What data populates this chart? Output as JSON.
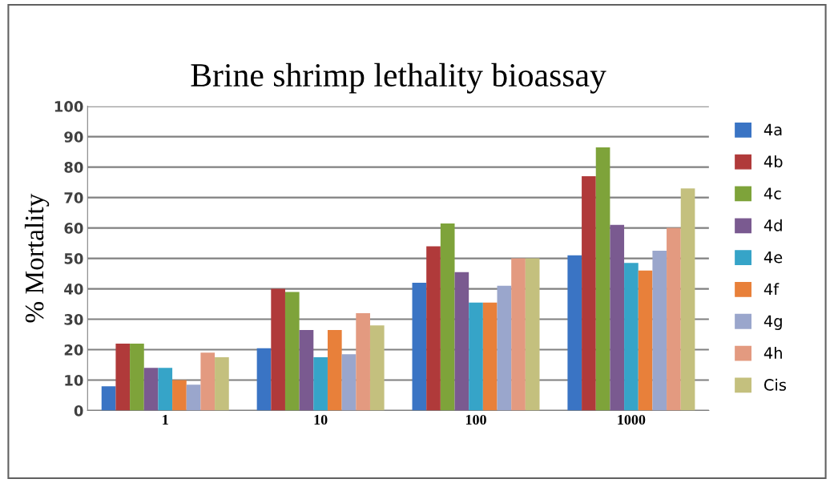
{
  "chart_data": {
    "type": "bar",
    "title": "Brine shrimp lethality bioassay",
    "ylabel": "% Mortality",
    "categories": [
      "1",
      "10",
      "100",
      "1000"
    ],
    "series": [
      {
        "name": "4a",
        "color": "#3a74c4",
        "values": [
          8,
          20.5,
          42,
          51
        ]
      },
      {
        "name": "4b",
        "color": "#b03a3a",
        "values": [
          22,
          40,
          54,
          77
        ]
      },
      {
        "name": "4c",
        "color": "#7ea33a",
        "values": [
          22,
          39,
          61.5,
          86.5
        ]
      },
      {
        "name": "4d",
        "color": "#7a5a90",
        "values": [
          14,
          26.5,
          45.5,
          61
        ]
      },
      {
        "name": "4e",
        "color": "#36a4c8",
        "values": [
          14,
          17.5,
          35.5,
          48.5
        ]
      },
      {
        "name": "4f",
        "color": "#e8803a",
        "values": [
          10,
          26.5,
          35.5,
          46
        ]
      },
      {
        "name": "4g",
        "color": "#9aa6cc",
        "values": [
          8.5,
          18.5,
          41,
          52.5
        ]
      },
      {
        "name": "4h",
        "color": "#e39a80",
        "values": [
          19,
          32,
          50,
          60
        ]
      },
      {
        "name": "Cis",
        "color": "#c4c07e",
        "values": [
          17.5,
          28,
          50,
          73
        ]
      }
    ],
    "ylim": [
      0,
      100
    ],
    "yticks": [
      0,
      10,
      20,
      30,
      40,
      50,
      60,
      70,
      80,
      90,
      100
    ],
    "grid": "y",
    "legend": "right"
  }
}
